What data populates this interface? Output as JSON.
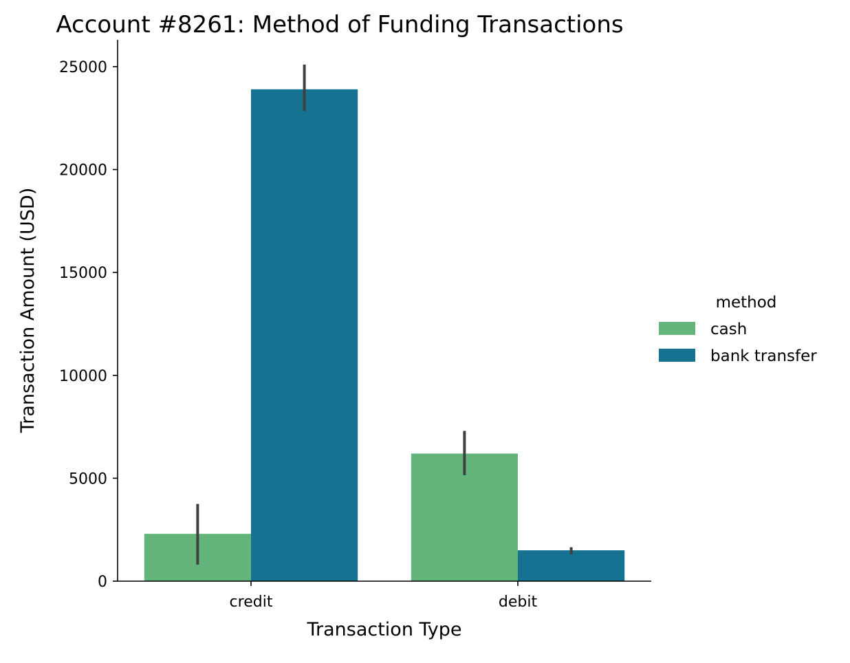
{
  "chart_data": {
    "type": "bar",
    "title": "Account #8261: Method of Funding Transactions",
    "xlabel": "Transaction Type",
    "ylabel": "Transaction Amount (USD)",
    "categories": [
      "credit",
      "debit"
    ],
    "ylim": [
      0,
      26300
    ],
    "yticks": [
      0,
      5000,
      10000,
      15000,
      20000,
      25000
    ],
    "grid": false,
    "legend": {
      "title": "method",
      "placement": "right"
    },
    "series": [
      {
        "name": "cash",
        "color": "#64b57c",
        "values": [
          2300,
          6200
        ],
        "error_low": [
          800,
          5150
        ],
        "error_high": [
          3750,
          7300
        ]
      },
      {
        "name": "bank transfer",
        "color": "#167291",
        "values": [
          23900,
          1500
        ],
        "error_low": [
          22850,
          1300
        ],
        "error_high": [
          25100,
          1650
        ]
      }
    ],
    "error_bar_color": "#404040"
  }
}
